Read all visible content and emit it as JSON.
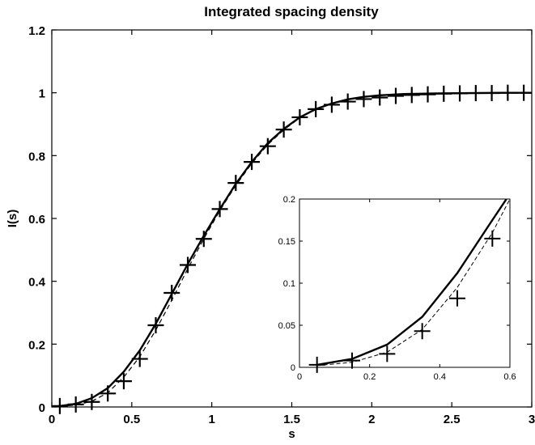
{
  "chart_data": [
    {
      "id": "main",
      "type": "line",
      "title": "Integrated spacing density",
      "xlabel": "s",
      "ylabel": "I(s)",
      "xlim": [
        0,
        3
      ],
      "ylim": [
        0,
        1.2
      ],
      "xticks": [
        0,
        0.5,
        1,
        1.5,
        2,
        2.5,
        3
      ],
      "xtick_labels": [
        "0",
        "0.5",
        "1",
        "1.5",
        "2",
        "2.5",
        "3"
      ],
      "yticks": [
        0,
        0.2,
        0.4,
        0.6,
        0.8,
        1,
        1.2
      ],
      "ytick_labels": [
        "0",
        "0.2",
        "0.4",
        "0.6",
        "0.8",
        "1",
        "1.2"
      ],
      "grid": false,
      "legend": "none",
      "series": [
        {
          "style": "solid",
          "color": "#000000",
          "x": [
            0,
            0.05,
            0.15,
            0.25,
            0.35,
            0.45,
            0.55,
            0.65,
            0.75,
            0.85,
            0.95,
            1.05,
            1.15,
            1.25,
            1.35,
            1.45,
            1.55,
            1.65,
            1.75,
            1.85,
            1.95,
            2.05,
            2.2,
            2.4,
            2.6,
            2.8,
            3.0
          ],
          "y": [
            0,
            0.003,
            0.01,
            0.028,
            0.06,
            0.112,
            0.18,
            0.265,
            0.36,
            0.455,
            0.545,
            0.63,
            0.71,
            0.78,
            0.84,
            0.885,
            0.922,
            0.948,
            0.966,
            0.979,
            0.987,
            0.992,
            0.996,
            0.998,
            0.999,
            1.0,
            1.0
          ]
        },
        {
          "style": "dashed",
          "color": "#000000",
          "x": [
            0,
            0.05,
            0.15,
            0.25,
            0.35,
            0.45,
            0.55,
            0.65,
            0.75,
            0.85,
            0.95,
            1.05,
            1.15,
            1.25,
            1.35,
            1.45,
            1.55,
            1.65,
            1.75,
            1.85,
            1.95,
            2.05,
            2.2,
            2.4,
            2.6,
            2.8,
            3.0
          ],
          "y": [
            0,
            0.002,
            0.006,
            0.018,
            0.045,
            0.095,
            0.16,
            0.245,
            0.34,
            0.44,
            0.535,
            0.625,
            0.705,
            0.775,
            0.835,
            0.882,
            0.92,
            0.947,
            0.966,
            0.979,
            0.987,
            0.992,
            0.996,
            0.998,
            0.999,
            1.0,
            1.0
          ]
        },
        {
          "style": "markers",
          "marker": "plus",
          "color": "#000000",
          "x": [
            0.05,
            0.15,
            0.25,
            0.35,
            0.45,
            0.55,
            0.65,
            0.75,
            0.85,
            0.95,
            1.05,
            1.15,
            1.25,
            1.35,
            1.45,
            1.55,
            1.65,
            1.75,
            1.85,
            1.95,
            2.05,
            2.15,
            2.25,
            2.35,
            2.45,
            2.55,
            2.65,
            2.75,
            2.85,
            2.95
          ],
          "y": [
            0.003,
            0.008,
            0.016,
            0.043,
            0.082,
            0.153,
            0.26,
            0.363,
            0.452,
            0.535,
            0.63,
            0.713,
            0.78,
            0.83,
            0.883,
            0.922,
            0.948,
            0.962,
            0.972,
            0.98,
            0.985,
            0.99,
            0.993,
            0.995,
            0.997,
            0.998,
            0.999,
            0.999,
            1.0,
            1.0
          ]
        }
      ]
    },
    {
      "id": "inset",
      "type": "line",
      "xlim": [
        0,
        0.6
      ],
      "ylim": [
        0,
        0.2
      ],
      "xticks": [
        0,
        0.2,
        0.4,
        0.6
      ],
      "xtick_labels": [
        "0",
        "0.2",
        "0.4",
        "0.6"
      ],
      "yticks": [
        0,
        0.05,
        0.1,
        0.15,
        0.2
      ],
      "ytick_labels": [
        "0",
        "0.05",
        "0.1",
        "0.15",
        "0.2"
      ],
      "grid": false,
      "legend": "none",
      "series": [
        {
          "style": "solid",
          "color": "#000000",
          "x": [
            0.05,
            0.15,
            0.25,
            0.35,
            0.45,
            0.55,
            0.59
          ],
          "y": [
            0.003,
            0.01,
            0.027,
            0.06,
            0.112,
            0.175,
            0.2
          ]
        },
        {
          "style": "dashed",
          "color": "#000000",
          "x": [
            0.05,
            0.15,
            0.25,
            0.35,
            0.45,
            0.55,
            0.6
          ],
          "y": [
            0.002,
            0.006,
            0.018,
            0.045,
            0.095,
            0.16,
            0.2
          ]
        },
        {
          "style": "markers",
          "marker": "plus",
          "color": "#000000",
          "x": [
            0.05,
            0.15,
            0.25,
            0.35,
            0.45,
            0.55
          ],
          "y": [
            0.003,
            0.008,
            0.016,
            0.043,
            0.082,
            0.153
          ]
        }
      ]
    }
  ]
}
